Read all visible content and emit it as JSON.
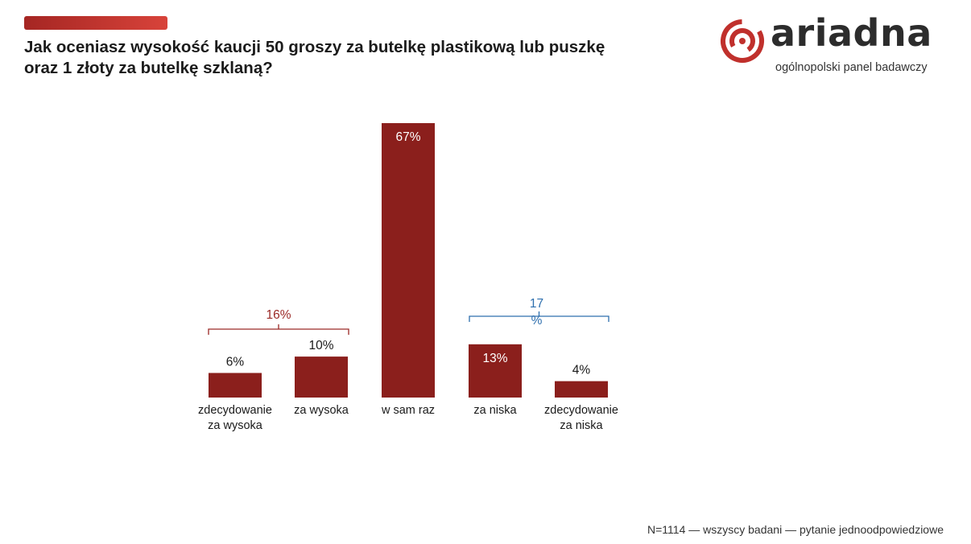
{
  "header": {
    "title_line1": "Jak oceniasz wysokość kaucji 50 groszy za butelkę plastikową lub puszkę",
    "title_line2": "oraz 1 złoty za butelkę szklaną?"
  },
  "logo": {
    "wordmark": "ariadna",
    "subtitle": "ogólnopolski panel badawczy"
  },
  "footnote": "N=1114 — wszyscy badani — pytanie jednoodpowiedziowe",
  "colors": {
    "bar": "#8b1f1c",
    "bracket_high": "#9b2a27",
    "bracket_low": "#2e6fae",
    "accent": "#c0302c"
  },
  "chart_data": {
    "type": "bar",
    "title": "Jak oceniasz wysokość kaucji 50 groszy za butelkę plastikową lub puszkę oraz 1 złoty za butelkę szklaną?",
    "categories": [
      [
        "zdecydowanie",
        "za wysoka"
      ],
      [
        "za wysoka"
      ],
      [
        "w sam raz"
      ],
      [
        "za niska"
      ],
      [
        "zdecydowanie",
        "za niska"
      ]
    ],
    "values": [
      6,
      10,
      67,
      13,
      4
    ],
    "value_labels": [
      "6%",
      "10%",
      "67%",
      "13%",
      "4%"
    ],
    "ylim": [
      0,
      67
    ],
    "grid": false,
    "legend": "none",
    "groups": [
      {
        "label": "16%",
        "from": 0,
        "to": 1,
        "color": "#9b2a27"
      },
      {
        "label_lines": [
          "17",
          "%"
        ],
        "from": 3,
        "to": 4,
        "color": "#2e6fae"
      }
    ]
  }
}
